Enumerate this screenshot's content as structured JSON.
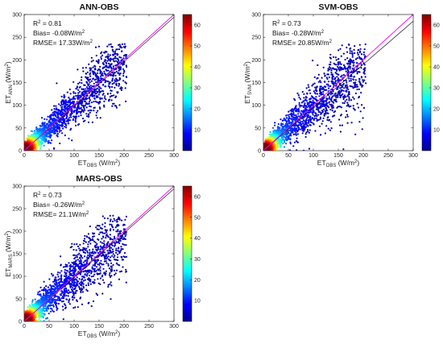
{
  "chart_data": [
    {
      "type": "scatter",
      "title": "ANN-OBS",
      "xlabel": {
        "main": "ET",
        "sub": "OBS",
        "unit": " (W/m",
        "sup": "2",
        "end": ")"
      },
      "ylabel": {
        "main": "ET",
        "sub": "ANN",
        "unit": " (W/m",
        "sup": "2",
        "end": ")"
      },
      "xlim": [
        0,
        300
      ],
      "ylim": [
        0,
        300
      ],
      "xticks": [
        0,
        50,
        100,
        150,
        200,
        250,
        300
      ],
      "yticks": [
        0,
        50,
        100,
        150,
        200,
        250,
        300
      ],
      "stats": {
        "r2_label": "R",
        "r2_sup": "2",
        "r2_value": "= 0.81",
        "bias": "Bias= -0.08W/m",
        "bias_sup": "2",
        "rmse": "RMSE= 17.33W/m",
        "rmse_sup": "2"
      },
      "slope": 1.0,
      "spread": 0.32,
      "n_points": 2600,
      "colorbar": {
        "ticks": [
          10,
          20,
          30,
          40,
          50,
          60
        ],
        "range": [
          0,
          65
        ]
      }
    },
    {
      "type": "scatter",
      "title": "SVM-OBS",
      "xlabel": {
        "main": "ET",
        "sub": "OBS",
        "unit": " (W/m",
        "sup": "2",
        "end": ")"
      },
      "ylabel": {
        "main": "ET",
        "sub": "SVM",
        "unit": " (W/m",
        "sup": "2",
        "end": ")"
      },
      "xlim": [
        0,
        300
      ],
      "ylim": [
        0,
        300
      ],
      "xticks": [
        0,
        50,
        100,
        150,
        200,
        250,
        300
      ],
      "yticks": [
        0,
        50,
        100,
        150,
        200,
        250,
        300
      ],
      "stats": {
        "r2_label": "R",
        "r2_sup": "2",
        "r2_value": "= 0.73",
        "bias": "Bias= -0.28W/m",
        "bias_sup": "2",
        "rmse": "RMSE= 20.85W/m",
        "rmse_sup": "2"
      },
      "slope": 0.97,
      "spread": 0.4,
      "n_points": 2600,
      "colorbar": {
        "ticks": [
          10,
          20,
          30,
          40,
          50,
          60
        ],
        "range": [
          0,
          65
        ]
      }
    },
    {
      "type": "scatter",
      "title": "MARS-OBS",
      "xlabel": {
        "main": "ET",
        "sub": "OBS",
        "unit": " (W/m",
        "sup": "2",
        "end": ")"
      },
      "ylabel": {
        "main": "ET",
        "sub": "MARS",
        "unit": " (W/m",
        "sup": "2",
        "end": ")"
      },
      "xlim": [
        0,
        300
      ],
      "ylim": [
        0,
        300
      ],
      "xticks": [
        0,
        50,
        100,
        150,
        200,
        250,
        300
      ],
      "yticks": [
        0,
        50,
        100,
        150,
        200,
        250,
        300
      ],
      "stats": {
        "r2_label": "R",
        "r2_sup": "2",
        "r2_value": "= 0.73",
        "bias": "Bias= -0.26W/m",
        "bias_sup": "2",
        "rmse": "RMSE= 21.1W/m",
        "rmse_sup": "2"
      },
      "slope": 1.0,
      "spread": 0.4,
      "n_points": 2600,
      "colorbar": {
        "ticks": [
          10,
          20,
          30,
          40,
          50,
          60
        ],
        "range": [
          0,
          65
        ]
      }
    }
  ],
  "colors": {
    "one_to_one_line": "#ff00ff",
    "fit_line": "#000000",
    "jet": [
      "#00008f",
      "#0000ff",
      "#0080ff",
      "#00ffff",
      "#80ff80",
      "#ffff00",
      "#ff8000",
      "#ff0000",
      "#800000"
    ]
  }
}
